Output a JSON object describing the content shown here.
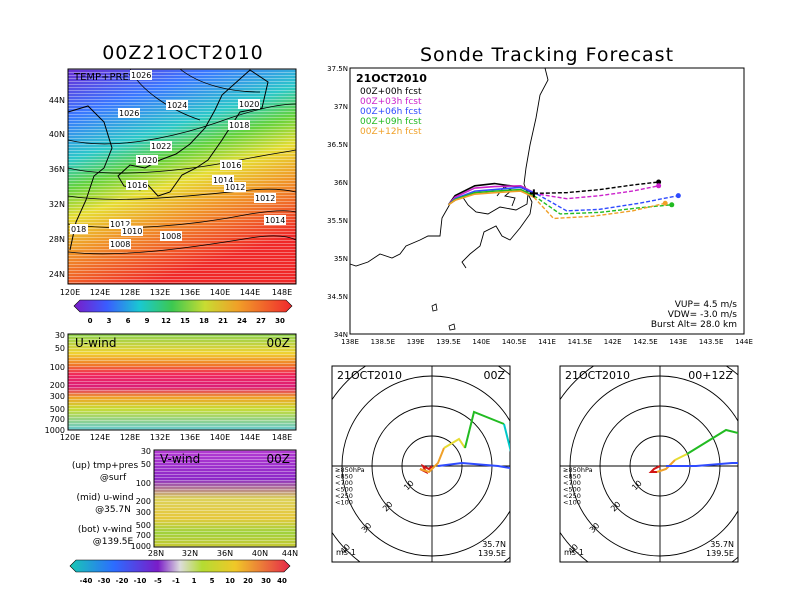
{
  "left_title": "00Z21OCT2010",
  "right_title": "Sonde Tracking Forecast",
  "colors": {
    "magenta": "#cc22cc",
    "purple": "#8f00c8",
    "blue": "#2f4bff",
    "cyan": "#00c8c8",
    "green": "#22bb22",
    "lime": "#8fd400",
    "yellow": "#e6dc32",
    "orange": "#f0a028",
    "red": "#f0282d",
    "darkred": "#d21414"
  },
  "map_panel": {
    "label": "TEMP+PRES",
    "x_ticks": [
      "120E",
      "124E",
      "128E",
      "132E",
      "136E",
      "140E",
      "144E",
      "148E"
    ],
    "y_ticks": [
      "44N",
      "40N",
      "36N",
      "32N",
      "28N",
      "24N"
    ],
    "isobars": [
      "1026",
      "1024",
      "1026",
      "1020",
      "1018",
      "1022",
      "1020",
      "1016",
      "1016",
      "1014",
      "1012",
      "1012",
      "1014",
      "018",
      "1012",
      "1010",
      "1008",
      "1008"
    ],
    "colorbar_labels": [
      "0",
      "3",
      "6",
      "9",
      "12",
      "15",
      "18",
      "21",
      "24",
      "27",
      "30"
    ]
  },
  "uwind_panel": {
    "label": "U-wind",
    "time": "00Z",
    "y_ticks": [
      "30",
      "50",
      "100",
      "200",
      "300",
      "500",
      "700",
      "1000"
    ],
    "x_ticks": [
      "120E",
      "124E",
      "128E",
      "132E",
      "136E",
      "140E",
      "144E",
      "148E"
    ]
  },
  "vwind_panel": {
    "label": "V-wind",
    "time": "00Z",
    "y_ticks": [
      "30",
      "50",
      "100",
      "200",
      "300",
      "500",
      "700",
      "1000"
    ],
    "x_ticks": [
      "28N",
      "32N",
      "36N",
      "40N",
      "44N"
    ],
    "colorbar_labels": [
      "-40",
      "-30",
      "-20",
      "-10",
      "-5",
      "-1",
      "1",
      "5",
      "10",
      "20",
      "30",
      "40"
    ]
  },
  "notes": [
    {
      "line1": "(up) tmp+pres",
      "line2": "@surf"
    },
    {
      "line1": "(mid) u-wind",
      "line2": "@35.7N"
    },
    {
      "line1": "(bot) v-wind",
      "line2": "@139.5E"
    }
  ],
  "chart_data": [
    {
      "type": "line",
      "title": "Sonde Tracking Forecast",
      "date_label": "21OCT2010",
      "xlim": [
        138,
        144
      ],
      "ylim": [
        34,
        37.5
      ],
      "x_ticks": [
        "138E",
        "138.5E",
        "139E",
        "139.5E",
        "140E",
        "140.5E",
        "141E",
        "141.5E",
        "142E",
        "142.5E",
        "143E",
        "143.5E",
        "144E"
      ],
      "y_ticks": [
        "37.5N",
        "37N",
        "36.5N",
        "36N",
        "35.5N",
        "35N",
        "34.5N",
        "34N"
      ],
      "series": [
        {
          "name": "00Z+00h fcst",
          "color": "#000000",
          "x": [
            140.8,
            140.6,
            140.2,
            139.9,
            139.6,
            139.5
          ],
          "y": [
            35.85,
            35.93,
            35.98,
            35.95,
            35.82,
            35.7
          ]
        },
        {
          "name": "00Z+03h fcst",
          "color": "#cc22cc",
          "x": [
            140.8,
            140.6,
            140.2,
            139.9,
            139.6,
            139.5
          ],
          "y": [
            35.86,
            35.95,
            35.94,
            35.92,
            35.8,
            35.7
          ]
        },
        {
          "name": "00Z+06h fcst",
          "color": "#2f4bff",
          "x": [
            140.85,
            140.6,
            140.2,
            139.9,
            139.6,
            139.5
          ],
          "y": [
            35.84,
            35.93,
            35.9,
            35.88,
            35.78,
            35.7
          ]
        },
        {
          "name": "00Z+09h fcst",
          "color": "#22bb22",
          "x": [
            140.8,
            140.6,
            140.2,
            139.9,
            139.6,
            139.5
          ],
          "y": [
            35.82,
            35.9,
            35.88,
            35.86,
            35.77,
            35.7
          ]
        },
        {
          "name": "00Z+12h fcst",
          "color": "#f0a028",
          "x": [
            140.8,
            140.6,
            140.2,
            139.9,
            139.6,
            139.5
          ],
          "y": [
            35.8,
            35.88,
            35.86,
            35.84,
            35.76,
            35.7
          ]
        }
      ],
      "descent": [
        {
          "color": "#000000",
          "x": [
            140.8,
            141.3,
            141.8,
            142.3,
            142.7
          ],
          "y": [
            35.85,
            35.86,
            35.9,
            35.96,
            36.0
          ]
        },
        {
          "color": "#cc22cc",
          "x": [
            140.8,
            141.3,
            141.8,
            142.3,
            142.7
          ],
          "y": [
            35.85,
            35.78,
            35.82,
            35.88,
            35.95
          ]
        },
        {
          "color": "#2f4bff",
          "x": [
            140.85,
            141.3,
            141.8,
            142.4,
            143.0
          ],
          "y": [
            35.84,
            35.62,
            35.64,
            35.72,
            35.82
          ]
        },
        {
          "color": "#22bb22",
          "x": [
            140.8,
            141.2,
            141.8,
            142.4,
            142.9
          ],
          "y": [
            35.82,
            35.58,
            35.6,
            35.66,
            35.7
          ]
        },
        {
          "color": "#f0a028",
          "x": [
            140.8,
            141.1,
            141.7,
            142.3,
            142.8
          ],
          "y": [
            35.8,
            35.52,
            35.55,
            35.62,
            35.72
          ]
        }
      ],
      "annotations": [
        "VUP= 4.5 m/s",
        "VDW= -3.0 m/s",
        "Burst Alt= 28.0 km"
      ]
    },
    {
      "type": "line",
      "subtype": "hodograph",
      "date_label": "21OCT2010",
      "time_label": "00Z",
      "rings": [
        10,
        20,
        30,
        40
      ],
      "legend": [
        "≥850hPa",
        "<850",
        "<700",
        "<500",
        "<250",
        "<100"
      ],
      "legend_colors": [
        "#d21414",
        "#f0a028",
        "#e6dc32",
        "#22bb22",
        "#00c8c8",
        "#2f4bff"
      ],
      "location": [
        "35.7N",
        "139.5E"
      ],
      "unit": "ms-1",
      "segments": [
        {
          "color": "#d21414",
          "u": [
            0,
            -1,
            -3,
            -2,
            -4
          ],
          "v": [
            0,
            -1,
            0,
            -2,
            -1
          ]
        },
        {
          "color": "#f0a028",
          "u": [
            -4,
            -1,
            2,
            4
          ],
          "v": [
            -1,
            -2,
            1,
            6
          ]
        },
        {
          "color": "#e6dc32",
          "u": [
            4,
            9,
            11
          ],
          "v": [
            6,
            9,
            6
          ]
        },
        {
          "color": "#22bb22",
          "u": [
            11,
            14,
            24
          ],
          "v": [
            6,
            18,
            14
          ]
        },
        {
          "color": "#00c8c8",
          "u": [
            24,
            28
          ],
          "v": [
            14,
            -2
          ]
        },
        {
          "color": "#2f4bff",
          "u": [
            2,
            10,
            22,
            28
          ],
          "v": [
            0,
            1,
            0,
            -1
          ]
        }
      ]
    },
    {
      "type": "line",
      "subtype": "hodograph",
      "date_label": "21OCT2010",
      "time_label": "00+12Z",
      "rings": [
        10,
        20,
        30,
        40
      ],
      "legend": [
        "≥850hPa",
        "<850",
        "<700",
        "<500",
        "<250",
        "<100"
      ],
      "legend_colors": [
        "#d21414",
        "#f0a028",
        "#e6dc32",
        "#22bb22",
        "#00c8c8",
        "#2f4bff"
      ],
      "location": [
        "35.7N",
        "139.5E"
      ],
      "unit": "ms-1",
      "segments": [
        {
          "color": "#d21414",
          "u": [
            0,
            -2,
            -3,
            -1
          ],
          "v": [
            0,
            -1,
            -2,
            -2
          ]
        },
        {
          "color": "#f0a028",
          "u": [
            -1,
            2,
            5
          ],
          "v": [
            -2,
            -1,
            2
          ]
        },
        {
          "color": "#e6dc32",
          "u": [
            5,
            9
          ],
          "v": [
            2,
            4
          ]
        },
        {
          "color": "#22bb22",
          "u": [
            9,
            22,
            30
          ],
          "v": [
            4,
            12,
            10
          ]
        },
        {
          "color": "#00c8c8",
          "u": [
            30,
            36
          ],
          "v": [
            10,
            10
          ]
        },
        {
          "color": "#2f4bff",
          "u": [
            2,
            12,
            24,
            32
          ],
          "v": [
            0,
            0,
            1,
            1
          ]
        }
      ]
    }
  ]
}
